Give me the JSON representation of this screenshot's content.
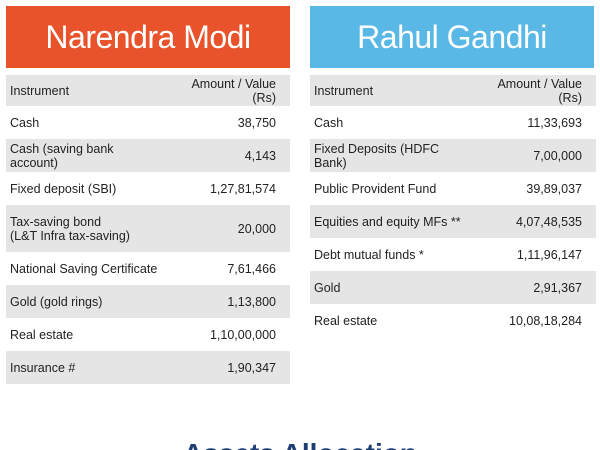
{
  "modi": {
    "name": "Narendra Modi",
    "headers": [
      "Instrument",
      "Amount / Value (Rs)"
    ],
    "rows": [
      {
        "instrument": "Cash",
        "amount": "38,750"
      },
      {
        "instrument": "Cash  (saving bank account)",
        "amount": "4,143"
      },
      {
        "instrument": "Fixed deposit (SBI)",
        "amount": "1,27,81,574"
      },
      {
        "instrument": "Tax-saving bond",
        "instrument_line2": "(L&T Infra tax-saving)",
        "amount": "20,000"
      },
      {
        "instrument": "National Saving Certificate",
        "amount": "7,61,466"
      },
      {
        "instrument": "Gold (gold rings)",
        "amount": "1,13,800"
      },
      {
        "instrument": "Real estate",
        "amount": "1,10,00,000"
      },
      {
        "instrument": "Insurance #",
        "amount": "1,90,347"
      }
    ]
  },
  "rahul": {
    "name": "Rahul Gandhi",
    "headers": [
      "Instrument",
      "Amount / Value (Rs)"
    ],
    "rows": [
      {
        "instrument": "Cash",
        "amount": "11,33,693"
      },
      {
        "instrument": "Fixed Deposits (HDFC Bank)",
        "amount": "7,00,000"
      },
      {
        "instrument": "Public Provident Fund",
        "amount": "39,89,037"
      },
      {
        "instrument": "Equities and equity MFs **",
        "amount": "4,07,48,535"
      },
      {
        "instrument": "Debt mutual funds *",
        "amount": "1,11,96,147"
      },
      {
        "instrument": "Gold",
        "amount": "2,91,367"
      },
      {
        "instrument": "Real estate",
        "amount": "10,08,18,284"
      }
    ]
  },
  "footer": {
    "partial_title": "Assets Allocation"
  },
  "colors": {
    "modi_header": "#e8532b",
    "rahul_header": "#5ab8e6",
    "row_shade": "#e5e5e5"
  }
}
